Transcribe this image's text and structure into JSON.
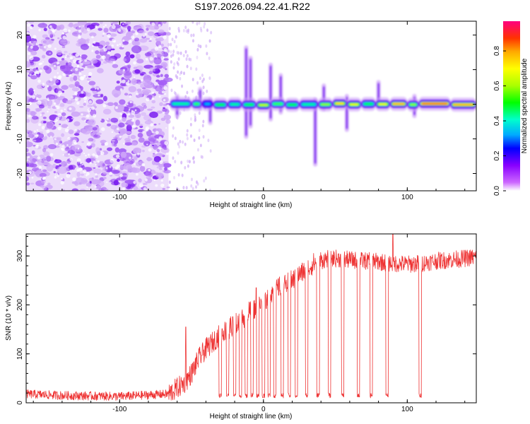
{
  "figure_title": "S197.2026.094.22.41.R22",
  "chart_data": [
    {
      "type": "heatmap",
      "panel": "top",
      "title": "",
      "xlabel": "Height of straight line (km)",
      "ylabel": "Frequency (Hz)",
      "xlim": [
        -165,
        148
      ],
      "ylim": [
        -25,
        24
      ],
      "xticks": [
        -100,
        0,
        100
      ],
      "yticks": [
        -20,
        -10,
        0,
        10,
        20
      ],
      "colorbar": {
        "label": "Normalized spectral amplitude",
        "range": [
          0,
          0.97
        ],
        "ticks": [
          0.0,
          0.2,
          0.4,
          0.6,
          0.8
        ],
        "colors": [
          "#ffffff",
          "#cc66ff",
          "#8800ff",
          "#0000ff",
          "#00aaff",
          "#00ffcc",
          "#00ff00",
          "#aaff00",
          "#ffff00",
          "#ffaa00",
          "#ff3300",
          "#ff0080"
        ]
      },
      "noise_region_x": [
        -165,
        -66
      ],
      "tone_frequency": 0,
      "tone_segments": [
        {
          "x0": -65,
          "x1": -50,
          "amp": 0.45
        },
        {
          "x0": -50,
          "x1": -43,
          "amp": 0.55
        },
        {
          "x0": -43,
          "x1": -35,
          "amp": 0.35
        },
        {
          "x0": -35,
          "x1": -25,
          "amp": 0.5
        },
        {
          "x0": -25,
          "x1": -15,
          "amp": 0.45
        },
        {
          "x0": -15,
          "x1": -5,
          "amp": 0.5
        },
        {
          "x0": -5,
          "x1": 5,
          "amp": 0.65
        },
        {
          "x0": 5,
          "x1": 15,
          "amp": 0.55
        },
        {
          "x0": 15,
          "x1": 25,
          "amp": 0.5
        },
        {
          "x0": 25,
          "x1": 38,
          "amp": 0.45
        },
        {
          "x0": 38,
          "x1": 48,
          "amp": 0.6
        },
        {
          "x0": 48,
          "x1": 58,
          "amp": 0.75
        },
        {
          "x0": 58,
          "x1": 68,
          "amp": 0.7
        },
        {
          "x0": 68,
          "x1": 78,
          "amp": 0.5
        },
        {
          "x0": 78,
          "x1": 88,
          "amp": 0.7
        },
        {
          "x0": 88,
          "x1": 100,
          "amp": 0.8
        },
        {
          "x0": 100,
          "x1": 108,
          "amp": 0.6
        },
        {
          "x0": 108,
          "x1": 130,
          "amp": 0.85
        },
        {
          "x0": 130,
          "x1": 148,
          "amp": 0.8
        }
      ],
      "vertical_streaks": [
        {
          "x": -60,
          "f0": -4,
          "f1": 3
        },
        {
          "x": -44,
          "f0": -2,
          "f1": 5
        },
        {
          "x": -37,
          "f0": -6,
          "f1": 2
        },
        {
          "x": -12,
          "f0": -10,
          "f1": 17
        },
        {
          "x": -9,
          "f0": -7,
          "f1": 14
        },
        {
          "x": 5,
          "f0": -5,
          "f1": 12
        },
        {
          "x": 12,
          "f0": -3,
          "f1": 9
        },
        {
          "x": 36,
          "f0": -18,
          "f1": 2
        },
        {
          "x": 42,
          "f0": -2,
          "f1": 6
        },
        {
          "x": 58,
          "f0": -8,
          "f1": 3
        },
        {
          "x": 80,
          "f0": -1,
          "f1": 7
        },
        {
          "x": 105,
          "f0": -4,
          "f1": 3
        }
      ]
    },
    {
      "type": "line",
      "panel": "bottom",
      "title": "",
      "xlabel": "Height of straight line (km)",
      "ylabel": "SNR (10 * v/v)",
      "xlim": [
        -165,
        148
      ],
      "ylim": [
        0,
        345
      ],
      "xticks": [
        -100,
        0,
        100
      ],
      "yticks": [
        0,
        100,
        200,
        300
      ],
      "series": [
        {
          "name": "SNR",
          "color": "#ee3333",
          "points": [
            [
              -165,
              18
            ],
            [
              -140,
              15
            ],
            [
              -120,
              14
            ],
            [
              -100,
              13
            ],
            [
              -80,
              16
            ],
            [
              -66,
              18
            ],
            [
              -55,
              40
            ],
            [
              -50,
              60
            ],
            [
              -45,
              90
            ],
            [
              -40,
              110
            ],
            [
              -35,
              125
            ],
            [
              -30,
              140
            ],
            [
              -25,
              150
            ],
            [
              -20,
              160
            ],
            [
              -15,
              170
            ],
            [
              -10,
              185
            ],
            [
              -5,
              195
            ],
            [
              0,
              205
            ],
            [
              5,
              225
            ],
            [
              10,
              235
            ],
            [
              15,
              240
            ],
            [
              20,
              250
            ],
            [
              25,
              262
            ],
            [
              30,
              272
            ],
            [
              35,
              285
            ],
            [
              40,
              290
            ],
            [
              45,
              295
            ],
            [
              50,
              295
            ],
            [
              60,
              292
            ],
            [
              70,
              290
            ],
            [
              80,
              288
            ],
            [
              90,
              285
            ],
            [
              100,
              283
            ],
            [
              110,
              285
            ],
            [
              120,
              290
            ],
            [
              130,
              292
            ],
            [
              140,
              295
            ],
            [
              148,
              298
            ]
          ],
          "dropouts": [
            -30,
            -25,
            -20,
            -16,
            -12,
            -8,
            -4,
            0,
            4,
            8,
            13,
            18,
            23,
            30,
            38,
            46,
            55,
            66,
            75,
            86,
            109
          ],
          "spikes": [
            [
              -54,
              155
            ],
            [
              -5,
              235
            ],
            [
              90,
              345
            ]
          ]
        }
      ]
    }
  ]
}
